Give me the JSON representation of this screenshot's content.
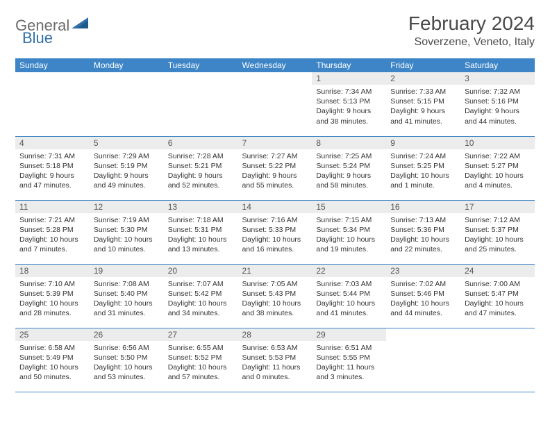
{
  "logo": {
    "part1": "General",
    "part2": "Blue"
  },
  "title": "February 2024",
  "location": "Soverzene, Veneto, Italy",
  "colors": {
    "header_bg": "#3d85c6",
    "header_text": "#ffffff",
    "daynum_bg": "#ececec",
    "border": "#3d85c6",
    "logo_gray": "#6b6b6b",
    "logo_blue": "#2f6fa8"
  },
  "weekdays": [
    "Sunday",
    "Monday",
    "Tuesday",
    "Wednesday",
    "Thursday",
    "Friday",
    "Saturday"
  ],
  "weeks": [
    [
      null,
      null,
      null,
      null,
      {
        "d": "1",
        "sr": "7:34 AM",
        "ss": "5:13 PM",
        "dl": "9 hours and 38 minutes."
      },
      {
        "d": "2",
        "sr": "7:33 AM",
        "ss": "5:15 PM",
        "dl": "9 hours and 41 minutes."
      },
      {
        "d": "3",
        "sr": "7:32 AM",
        "ss": "5:16 PM",
        "dl": "9 hours and 44 minutes."
      }
    ],
    [
      {
        "d": "4",
        "sr": "7:31 AM",
        "ss": "5:18 PM",
        "dl": "9 hours and 47 minutes."
      },
      {
        "d": "5",
        "sr": "7:29 AM",
        "ss": "5:19 PM",
        "dl": "9 hours and 49 minutes."
      },
      {
        "d": "6",
        "sr": "7:28 AM",
        "ss": "5:21 PM",
        "dl": "9 hours and 52 minutes."
      },
      {
        "d": "7",
        "sr": "7:27 AM",
        "ss": "5:22 PM",
        "dl": "9 hours and 55 minutes."
      },
      {
        "d": "8",
        "sr": "7:25 AM",
        "ss": "5:24 PM",
        "dl": "9 hours and 58 minutes."
      },
      {
        "d": "9",
        "sr": "7:24 AM",
        "ss": "5:25 PM",
        "dl": "10 hours and 1 minute."
      },
      {
        "d": "10",
        "sr": "7:22 AM",
        "ss": "5:27 PM",
        "dl": "10 hours and 4 minutes."
      }
    ],
    [
      {
        "d": "11",
        "sr": "7:21 AM",
        "ss": "5:28 PM",
        "dl": "10 hours and 7 minutes."
      },
      {
        "d": "12",
        "sr": "7:19 AM",
        "ss": "5:30 PM",
        "dl": "10 hours and 10 minutes."
      },
      {
        "d": "13",
        "sr": "7:18 AM",
        "ss": "5:31 PM",
        "dl": "10 hours and 13 minutes."
      },
      {
        "d": "14",
        "sr": "7:16 AM",
        "ss": "5:33 PM",
        "dl": "10 hours and 16 minutes."
      },
      {
        "d": "15",
        "sr": "7:15 AM",
        "ss": "5:34 PM",
        "dl": "10 hours and 19 minutes."
      },
      {
        "d": "16",
        "sr": "7:13 AM",
        "ss": "5:36 PM",
        "dl": "10 hours and 22 minutes."
      },
      {
        "d": "17",
        "sr": "7:12 AM",
        "ss": "5:37 PM",
        "dl": "10 hours and 25 minutes."
      }
    ],
    [
      {
        "d": "18",
        "sr": "7:10 AM",
        "ss": "5:39 PM",
        "dl": "10 hours and 28 minutes."
      },
      {
        "d": "19",
        "sr": "7:08 AM",
        "ss": "5:40 PM",
        "dl": "10 hours and 31 minutes."
      },
      {
        "d": "20",
        "sr": "7:07 AM",
        "ss": "5:42 PM",
        "dl": "10 hours and 34 minutes."
      },
      {
        "d": "21",
        "sr": "7:05 AM",
        "ss": "5:43 PM",
        "dl": "10 hours and 38 minutes."
      },
      {
        "d": "22",
        "sr": "7:03 AM",
        "ss": "5:44 PM",
        "dl": "10 hours and 41 minutes."
      },
      {
        "d": "23",
        "sr": "7:02 AM",
        "ss": "5:46 PM",
        "dl": "10 hours and 44 minutes."
      },
      {
        "d": "24",
        "sr": "7:00 AM",
        "ss": "5:47 PM",
        "dl": "10 hours and 47 minutes."
      }
    ],
    [
      {
        "d": "25",
        "sr": "6:58 AM",
        "ss": "5:49 PM",
        "dl": "10 hours and 50 minutes."
      },
      {
        "d": "26",
        "sr": "6:56 AM",
        "ss": "5:50 PM",
        "dl": "10 hours and 53 minutes."
      },
      {
        "d": "27",
        "sr": "6:55 AM",
        "ss": "5:52 PM",
        "dl": "10 hours and 57 minutes."
      },
      {
        "d": "28",
        "sr": "6:53 AM",
        "ss": "5:53 PM",
        "dl": "11 hours and 0 minutes."
      },
      {
        "d": "29",
        "sr": "6:51 AM",
        "ss": "5:55 PM",
        "dl": "11 hours and 3 minutes."
      },
      null,
      null
    ]
  ],
  "labels": {
    "sunrise": "Sunrise: ",
    "sunset": "Sunset: ",
    "daylight": "Daylight: "
  }
}
